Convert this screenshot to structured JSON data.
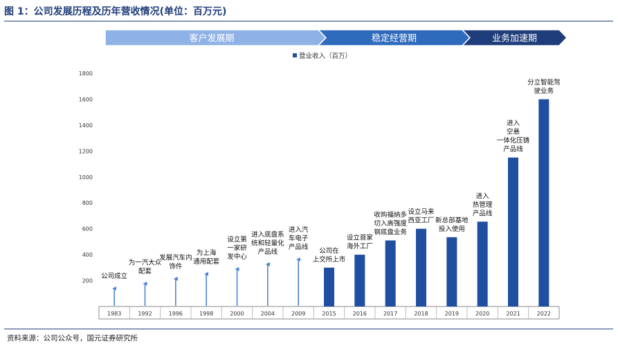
{
  "title": "图 1：公司发展历程及历年营收情况(单位：百万元)",
  "source": "资料来源：公司公众号，国元证券研究所",
  "colors": {
    "bar": "#1f4fa0",
    "arrow": "#4a84d0",
    "phase1": "#8fb2e6",
    "phase2": "#2f6bbd",
    "phase3": "#1f3d7a",
    "title": "#1f3d7a"
  },
  "phases": [
    {
      "label": "客户发展期"
    },
    {
      "label": "稳定经营期"
    },
    {
      "label": "业务加速期"
    }
  ],
  "chart_data": {
    "type": "bar",
    "title": "",
    "xlabel": "",
    "ylabel": "",
    "legend": {
      "label": "营业收入（百万）",
      "position": "top"
    },
    "ylim": [
      0,
      1800
    ],
    "yticks": [
      200,
      400,
      600,
      800,
      1000,
      1200,
      1400,
      1600,
      1800
    ],
    "grid": false,
    "categories": [
      "1983",
      "1992",
      "1996",
      "1998",
      "2000",
      "2004",
      "2009",
      "2015",
      "2016",
      "2017",
      "2018",
      "2019",
      "2020",
      "2021",
      "2022"
    ],
    "series": [
      {
        "name": "营业收入（百万）",
        "values": [
          null,
          null,
          null,
          null,
          null,
          null,
          null,
          300,
          400,
          510,
          600,
          535,
          655,
          1150,
          1600
        ]
      }
    ],
    "annotations": [
      {
        "category": "1983",
        "kind": "arrow",
        "text": [
          "公司成立"
        ]
      },
      {
        "category": "1992",
        "kind": "arrow",
        "text": [
          "为一汽大众",
          "配套"
        ]
      },
      {
        "category": "1996",
        "kind": "arrow",
        "text": [
          "发展汽车内",
          "饰件"
        ]
      },
      {
        "category": "1998",
        "kind": "arrow",
        "text": [
          "为上海",
          "通用配套"
        ]
      },
      {
        "category": "2000",
        "kind": "arrow",
        "text": [
          "设立第",
          "一家研",
          "发中心"
        ]
      },
      {
        "category": "2004",
        "kind": "arrow",
        "text": [
          "进入底盘系",
          "统和轻量化",
          "产品线"
        ]
      },
      {
        "category": "2009",
        "kind": "arrow",
        "text": [
          "进入汽",
          "车电子",
          "产品线"
        ]
      },
      {
        "category": "2015",
        "kind": "bar",
        "text": [
          "公司在",
          "上交所上市"
        ]
      },
      {
        "category": "2016",
        "kind": "bar",
        "text": [
          "设立首家",
          "海外工厂"
        ]
      },
      {
        "category": "2017",
        "kind": "bar",
        "text": [
          "收购福纳多",
          "切入高强度",
          "钢底盘业务"
        ]
      },
      {
        "category": "2018",
        "kind": "bar",
        "text": [
          "设立马来",
          "西亚工厂"
        ]
      },
      {
        "category": "2019",
        "kind": "bar",
        "text": [
          "新总部基地",
          "投入使用"
        ]
      },
      {
        "category": "2020",
        "kind": "bar",
        "text": [
          "进入",
          "热管理",
          "产品线"
        ]
      },
      {
        "category": "2021",
        "kind": "bar",
        "text": [
          "进入",
          "空悬",
          "一体化压铸",
          "产品线"
        ]
      },
      {
        "category": "2022",
        "kind": "bar",
        "text": [
          "分立智能驾",
          "驶业务"
        ]
      }
    ]
  }
}
